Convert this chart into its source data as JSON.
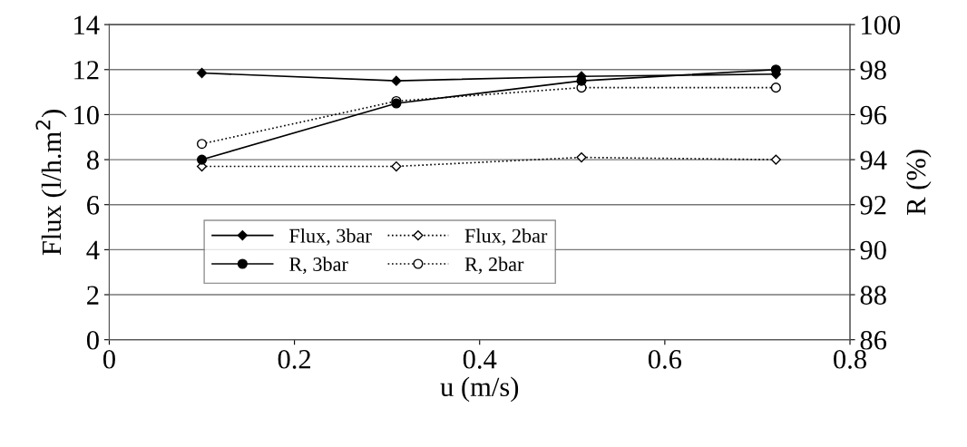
{
  "chart_data": {
    "type": "line",
    "xlabel": "u (m/s)",
    "ylabel": "Flux (l/h.m$^{2}$)",
    "y2label": "R (%)",
    "x": [
      0.1,
      0.31,
      0.51,
      0.72
    ],
    "series": [
      {
        "name": "Flux, 3bar",
        "color": "#000000",
        "marker": "diamond",
        "line_style": "solid",
        "values": [
          11.85,
          11.5,
          11.7,
          11.8
        ]
      },
      {
        "name": "Flux, 2bar",
        "color": "#000000",
        "marker": "diamond",
        "line_style": "dotted",
        "values": [
          7.7,
          7.7,
          8.1,
          8.0
        ]
      },
      {
        "name": "R, 3bar",
        "color": "#000000",
        "marker": "circle",
        "line_style": "solid",
        "axis": "y2",
        "values": [
          94.0,
          96.5,
          97.5,
          98.0
        ]
      },
      {
        "name": "R, 2bar",
        "color": "#000000",
        "marker": "circle",
        "line_style": "dotted",
        "axis": "y2",
        "values": [
          94.7,
          96.6,
          97.2,
          97.2
        ]
      }
    ],
    "xlim": [
      0,
      0.8
    ],
    "xticks": [
      0,
      0.2,
      0.4,
      0.6,
      0.8
    ],
    "ylim": [
      0,
      14
    ],
    "yticks": [
      0,
      2,
      4,
      6,
      8,
      10,
      12,
      14
    ],
    "y2lim": [
      86,
      100
    ],
    "y2ticks": [
      86,
      88,
      90,
      92,
      94,
      96,
      98,
      100
    ],
    "grid": "y",
    "legend": "lower left"
  }
}
